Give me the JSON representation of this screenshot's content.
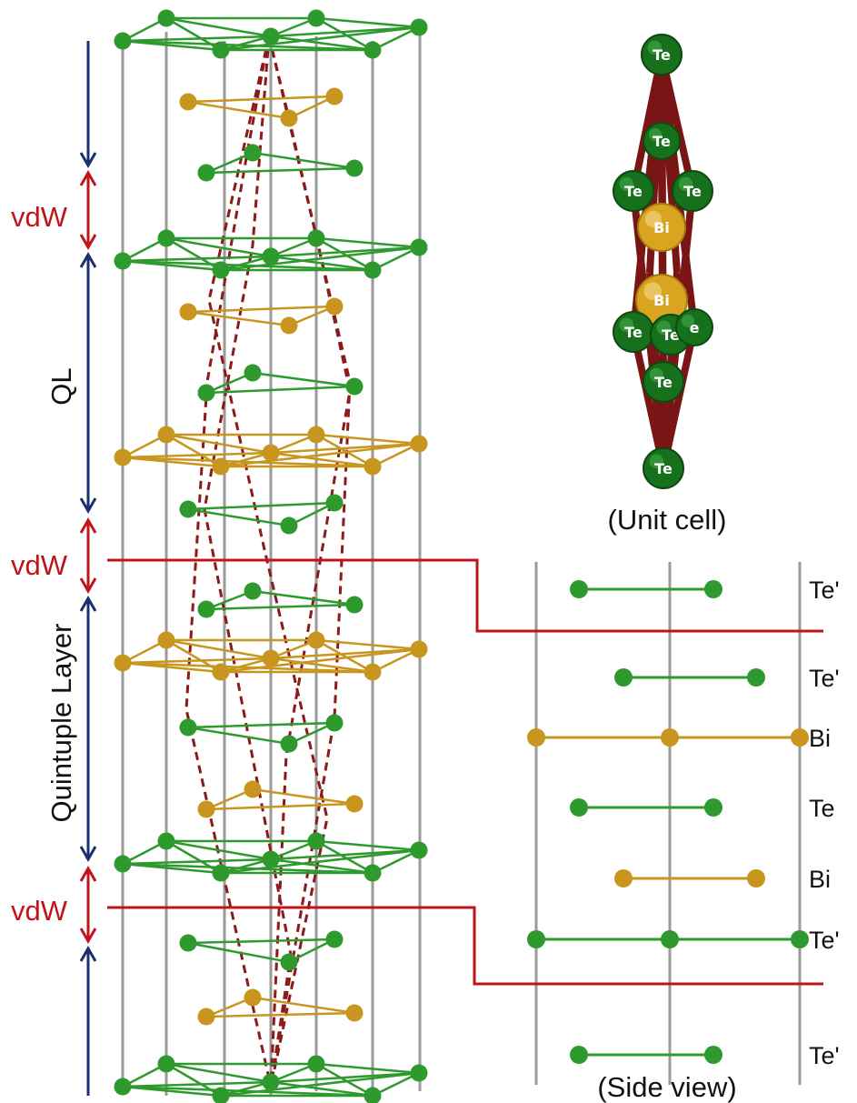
{
  "labels": {
    "vdw_top": "vdW",
    "ql": "QL",
    "vdw_mid": "vdW",
    "quintuple_layer": "Quintuple Layer",
    "vdw_bottom": "vdW",
    "unit_cell_caption": "(Unit cell)",
    "side_view_caption": "(Side view)"
  },
  "unit_cell_atoms": [
    {
      "name": "atom-te-1",
      "label": "Te",
      "element": "Te"
    },
    {
      "name": "atom-te-2",
      "label": "Te",
      "element": "Te"
    },
    {
      "name": "atom-bi-1",
      "label": "Bi",
      "element": "Bi"
    },
    {
      "name": "atom-te-3",
      "label": "Te",
      "element": "Te"
    },
    {
      "name": "atom-te-4",
      "label": "Te",
      "element": "Te"
    },
    {
      "name": "atom-bi-2",
      "label": "Bi",
      "element": "Bi"
    },
    {
      "name": "atom-te-5",
      "label": "Te",
      "element": "Te"
    },
    {
      "name": "atom-te-6",
      "label": "Te",
      "element": "Te"
    },
    {
      "name": "atom-te-7",
      "label": "e",
      "element": "Te"
    },
    {
      "name": "atom-te-8",
      "label": "Te",
      "element": "Te"
    },
    {
      "name": "atom-te-9",
      "label": "Te",
      "element": "Te"
    }
  ],
  "side_view_layers": [
    {
      "label": "Te'",
      "element": "Te"
    },
    {
      "label": "Te'",
      "element": "Te"
    },
    {
      "label": "Bi",
      "element": "Bi"
    },
    {
      "label": "Te",
      "element": "Te"
    },
    {
      "label": "Bi",
      "element": "Bi"
    },
    {
      "label": "Te'",
      "element": "Te"
    },
    {
      "label": "Te'",
      "element": "Te"
    }
  ],
  "colors": {
    "te_green": "#2e9a2e",
    "bi_gold": "#c8961e",
    "vdw_red": "#c0141b",
    "arrow_blue": "#1b2f6e",
    "bond_darkred": "#8b1a1a",
    "grid_gray": "#9a9a9a"
  }
}
